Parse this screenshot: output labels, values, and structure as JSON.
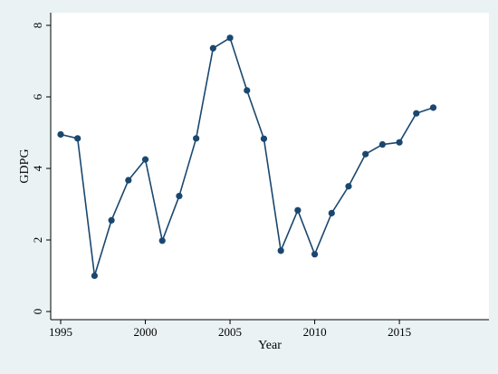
{
  "chart_data": {
    "type": "line",
    "title": "",
    "xlabel": "Year",
    "ylabel": "GDPG",
    "xlim": [
      1995,
      2017
    ],
    "ylim": [
      0,
      8
    ],
    "x_ticks": [
      1995,
      2000,
      2005,
      2010,
      2015
    ],
    "y_ticks": [
      0,
      2,
      4,
      6,
      8
    ],
    "grid": false,
    "colors": {
      "line": "#1a476f",
      "background": "#eaf2f3",
      "plot_background": "#ffffff"
    },
    "series": [
      {
        "x": [
          1995,
          1996,
          1997,
          1998,
          1999,
          2000,
          2001,
          2002,
          2003,
          2004,
          2005,
          2006,
          2007,
          2008,
          2009,
          2010,
          2011,
          2012,
          2013,
          2014,
          2015,
          2016,
          2017
        ],
        "values": [
          4.95,
          4.84,
          1.0,
          2.55,
          3.67,
          4.25,
          1.98,
          3.23,
          4.84,
          7.36,
          7.65,
          6.18,
          4.83,
          1.7,
          2.83,
          1.6,
          2.75,
          3.5,
          4.4,
          4.67,
          4.73,
          5.54,
          5.7
        ]
      }
    ]
  }
}
